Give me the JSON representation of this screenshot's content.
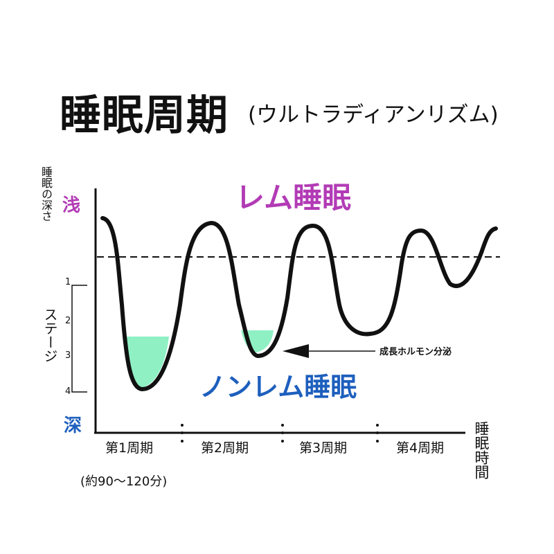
{
  "title": "睡眠周期",
  "subtitle": "(ウルトラディアンリズム)",
  "y_axis": {
    "label": "睡眠の深さ",
    "shallow": "浅",
    "deep": "深",
    "stage_label": "ステージ",
    "stage_ticks": [
      "1",
      "2",
      "3",
      "4"
    ]
  },
  "labels": {
    "rem": "レム睡眠",
    "non_rem": "ノンレム睡眠",
    "growth_hormone": "成長ホルモン分泌"
  },
  "x_axis": {
    "label": "睡眠時間",
    "cycles": [
      "第1周期",
      "第2周期",
      "第3周期",
      "第4周期"
    ],
    "cycle_note": "(約90〜120分)"
  },
  "colors": {
    "rem": "#b23bb5",
    "non_rem": "#1d5fbd",
    "deep_sleep_fill": "#8ff0c4",
    "curve": "#111111"
  }
}
